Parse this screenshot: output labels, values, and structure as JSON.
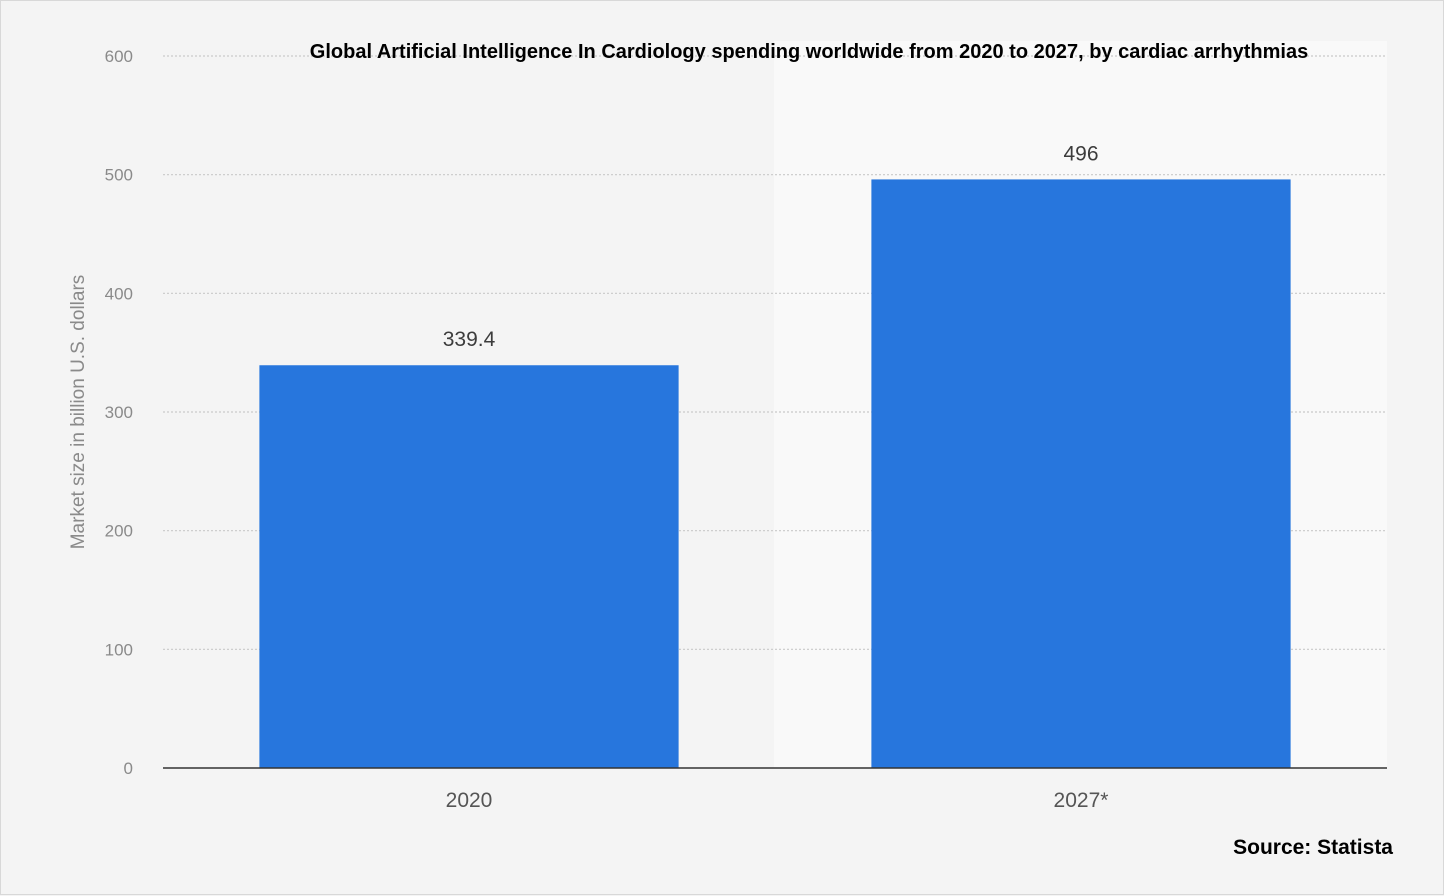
{
  "chart_data": {
    "type": "bar",
    "title": "Global Artificial Intelligence In Cardiology spending worldwide from 2020 to 2027, by cardiac arrhythmias",
    "ylabel": "Market size in billion U.S. dollars",
    "xlabel": "",
    "categories": [
      "2020",
      "2027*"
    ],
    "values": [
      339.4,
      496
    ],
    "data_labels": [
      "339.4",
      "496"
    ],
    "ylim": [
      0,
      600
    ],
    "yticks": [
      0,
      100,
      200,
      300,
      400,
      500,
      600
    ],
    "ytick_labels": [
      "0",
      "100",
      "200",
      "300",
      "400",
      "500",
      "600"
    ],
    "grid": true,
    "legend": "none",
    "bar_color": "#2776dd",
    "source": "Source: Statista"
  }
}
